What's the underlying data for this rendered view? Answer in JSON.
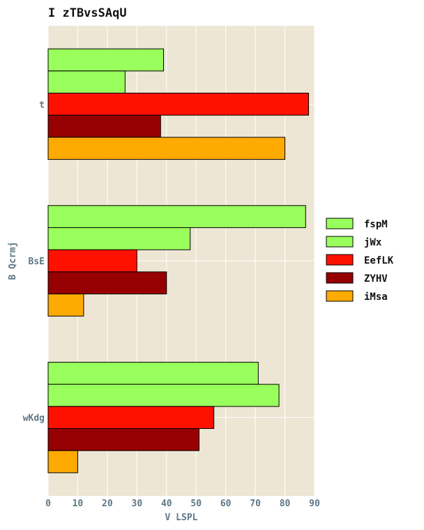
{
  "chart_data": {
    "type": "bar",
    "orientation": "horizontal",
    "title": "I zTBvsSAqU",
    "xlabel": "V LSPL",
    "ylabel": "B Qcrmj",
    "categories": [
      "t",
      "BsE",
      "wKdg"
    ],
    "xlim": [
      0,
      90
    ],
    "xticks": [
      "0",
      "10",
      "20",
      "30",
      "40",
      "50",
      "60",
      "70",
      "80",
      "90"
    ],
    "grid": true,
    "legend_position": "right",
    "series": [
      {
        "name": "fspM",
        "color": "#99ff5c",
        "values": [
          39,
          87,
          71
        ]
      },
      {
        "name": "jWx",
        "color": "#99ff5c",
        "values": [
          26,
          48,
          78
        ]
      },
      {
        "name": "EefLK",
        "color": "#ff1100",
        "values": [
          88,
          30,
          56
        ]
      },
      {
        "name": "ZYHV",
        "color": "#960000",
        "values": [
          38,
          40,
          51
        ]
      },
      {
        "name": "iMsa",
        "color": "#ffaa00",
        "values": [
          80,
          12,
          10
        ]
      }
    ],
    "colors": {
      "plot_background": "#ede6d4",
      "grid": "#ffffff",
      "bar_stroke": "#000000"
    }
  }
}
